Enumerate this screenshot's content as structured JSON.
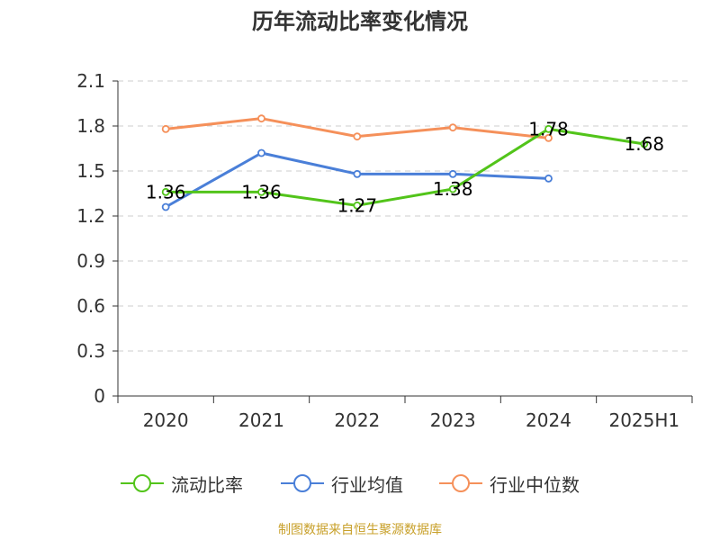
{
  "chart_data": {
    "type": "line",
    "title": "历年流动比率变化情况",
    "categories": [
      "2020",
      "2021",
      "2022",
      "2023",
      "2024",
      "2025H1"
    ],
    "ylim": [
      0,
      2.1
    ],
    "yticks": [
      "0",
      "0.3",
      "0.6",
      "0.9",
      "1.2",
      "1.5",
      "1.8",
      "2.1"
    ],
    "grid": true,
    "legend_position": "bottom",
    "series": [
      {
        "name": "流动比率",
        "color": "#52c41a",
        "values": [
          1.36,
          1.36,
          1.27,
          1.38,
          1.78,
          1.68
        ],
        "labels": [
          "1.36",
          "1.36",
          "1.27",
          "1.38",
          "1.78",
          "1.68"
        ]
      },
      {
        "name": "行业均值",
        "color": "#4a7fd8",
        "values": [
          1.26,
          1.62,
          1.48,
          1.48,
          1.45,
          null
        ]
      },
      {
        "name": "行业中位数",
        "color": "#f5905a",
        "values": [
          1.78,
          1.85,
          1.73,
          1.79,
          1.72,
          null
        ]
      }
    ]
  },
  "source_text": "制图数据来自恒生聚源数据库"
}
